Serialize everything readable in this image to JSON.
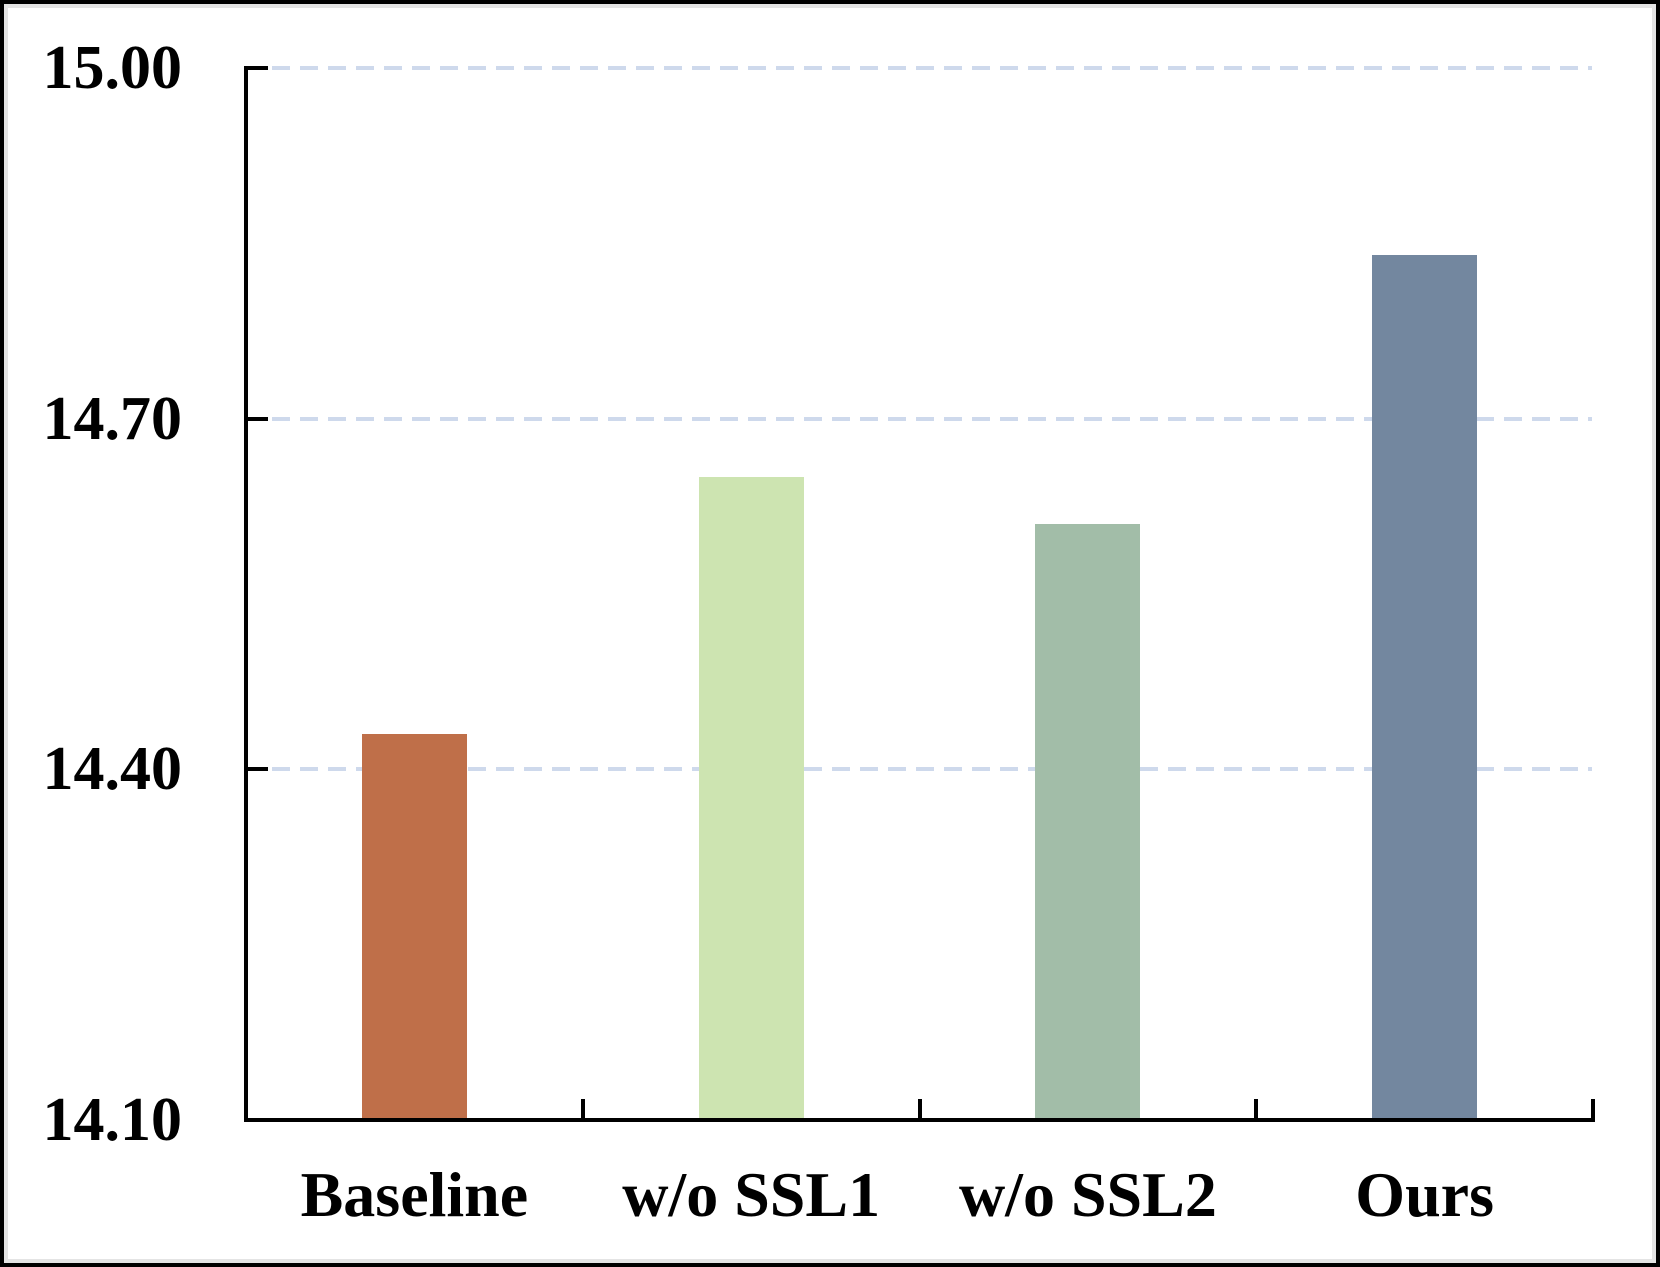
{
  "chart_data": {
    "type": "bar",
    "title": "",
    "xlabel": "",
    "ylabel": "",
    "categories": [
      "Baseline",
      "w/o SSL1",
      "w/o SSL2",
      "Ours"
    ],
    "values": [
      14.43,
      14.65,
      14.61,
      14.84
    ],
    "bar_colors": [
      "#BF6F49",
      "#CDE4B1",
      "#A2BDA8",
      "#73879F"
    ],
    "ylim": [
      14.1,
      15.0
    ],
    "ytick_step": 0.3,
    "yticks": [
      {
        "value": 15.0,
        "label": "15.00"
      },
      {
        "value": 14.7,
        "label": "14.70"
      },
      {
        "value": 14.4,
        "label": "14.40"
      },
      {
        "value": 14.1,
        "label": "14.10"
      }
    ],
    "grid": "horizontal-dashed",
    "gridline_color": "#CED9EC",
    "axis_color": "#000000",
    "legend_position": "none",
    "tick_style": "inside"
  }
}
